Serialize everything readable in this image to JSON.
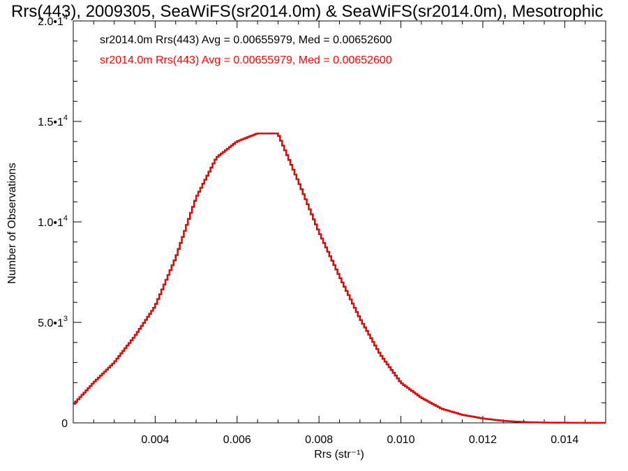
{
  "chart_data": {
    "type": "histogram-step",
    "title": "Rrs(443), 2009305, SeaWiFS(sr2014.0m) & SeaWiFS(sr2014.0m), Mesotrophic",
    "xlabel": "Rrs (str⁻¹)",
    "ylabel": "Number of Observations",
    "xlim": [
      0.002,
      0.015
    ],
    "ylim": [
      0,
      20000
    ],
    "x_ticks": [
      {
        "value": 0.004,
        "label": "0.004"
      },
      {
        "value": 0.006,
        "label": "0.006"
      },
      {
        "value": 0.008,
        "label": "0.008"
      },
      {
        "value": 0.01,
        "label": "0.010"
      },
      {
        "value": 0.012,
        "label": "0.012"
      },
      {
        "value": 0.014,
        "label": "0.014"
      }
    ],
    "y_ticks": [
      {
        "value": 0,
        "mantissa": "0",
        "exponent": ""
      },
      {
        "value": 5000,
        "mantissa": "5.0•1",
        "exponent": "3"
      },
      {
        "value": 10000,
        "mantissa": "1.0•1",
        "exponent": "4"
      },
      {
        "value": 15000,
        "mantissa": "1.5•1",
        "exponent": "4"
      },
      {
        "value": 20000,
        "mantissa": "2.0•1",
        "exponent": "4"
      }
    ],
    "series": [
      {
        "legend": "sr2014.0m Rrs(443) Avg = 0.00655979, Med = 0.00652600",
        "color": "#000000",
        "x": [
          0.002,
          0.0025,
          0.003,
          0.0035,
          0.004,
          0.0045,
          0.005,
          0.0055,
          0.006,
          0.0065,
          0.007,
          0.0075,
          0.008,
          0.0085,
          0.009,
          0.0095,
          0.01,
          0.0105,
          0.011,
          0.0115,
          0.012,
          0.0125,
          0.013,
          0.0135,
          0.014,
          0.0145,
          0.015
        ],
        "y": [
          900,
          2000,
          3000,
          4300,
          5800,
          8200,
          11200,
          13200,
          14000,
          14400,
          14400,
          12000,
          9500,
          7300,
          5200,
          3400,
          2000,
          1250,
          700,
          400,
          220,
          100,
          40,
          15,
          5,
          0,
          0
        ]
      },
      {
        "legend": "sr2014.0m Rrs(443) Avg = 0.00655979, Med = 0.00652600",
        "color": "#ff0000",
        "x": [
          0.002,
          0.0025,
          0.003,
          0.0035,
          0.004,
          0.0045,
          0.005,
          0.0055,
          0.006,
          0.0065,
          0.007,
          0.0075,
          0.008,
          0.0085,
          0.009,
          0.0095,
          0.01,
          0.0105,
          0.011,
          0.0115,
          0.012,
          0.0125,
          0.013,
          0.0135,
          0.014,
          0.0145,
          0.015
        ],
        "y": [
          900,
          2000,
          3000,
          4300,
          5800,
          8200,
          11200,
          13200,
          14000,
          14400,
          14400,
          12000,
          9500,
          7300,
          5200,
          3400,
          2000,
          1250,
          700,
          400,
          220,
          100,
          40,
          15,
          5,
          0,
          0
        ]
      }
    ],
    "grid": false,
    "legend_position": "top-left"
  }
}
